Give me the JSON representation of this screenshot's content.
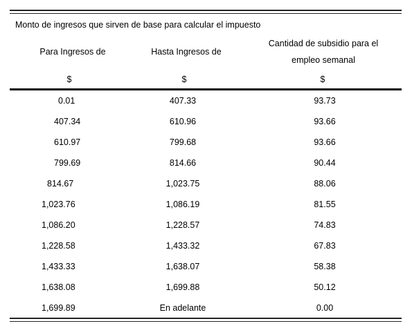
{
  "caption": "Monto de ingresos que sirven de base para calcular el impuesto",
  "headers": {
    "col1": "Para Ingresos de",
    "col2": "Hasta Ingresos de",
    "col3_line1": "Cantidad de subsidio para el",
    "col3_line2": "empleo semanal"
  },
  "units": {
    "col1": "$",
    "col2": "$",
    "col3": "$"
  },
  "rows": [
    {
      "desde": "0.01",
      "hasta": "407.33",
      "subsidio": "93.73"
    },
    {
      "desde": "407.34",
      "hasta": "610.96",
      "subsidio": "93.66"
    },
    {
      "desde": "610.97",
      "hasta": "799.68",
      "subsidio": "93.66"
    },
    {
      "desde": "799.69",
      "hasta": "814.66",
      "subsidio": "90.44"
    },
    {
      "desde": "814.67",
      "hasta": "1,023.75",
      "subsidio": "88.06"
    },
    {
      "desde": "1,023.76",
      "hasta": "1,086.19",
      "subsidio": "81.55"
    },
    {
      "desde": "1,086.20",
      "hasta": "1,228.57",
      "subsidio": "74.83"
    },
    {
      "desde": "1,228.58",
      "hasta": "1,433.32",
      "subsidio": "67.83"
    },
    {
      "desde": "1,433.33",
      "hasta": "1,638.07",
      "subsidio": "58.38"
    },
    {
      "desde": "1,638.08",
      "hasta": "1,699.88",
      "subsidio": "50.12"
    },
    {
      "desde": "1,699.89",
      "hasta": "En adelante",
      "subsidio": "0.00"
    }
  ]
}
